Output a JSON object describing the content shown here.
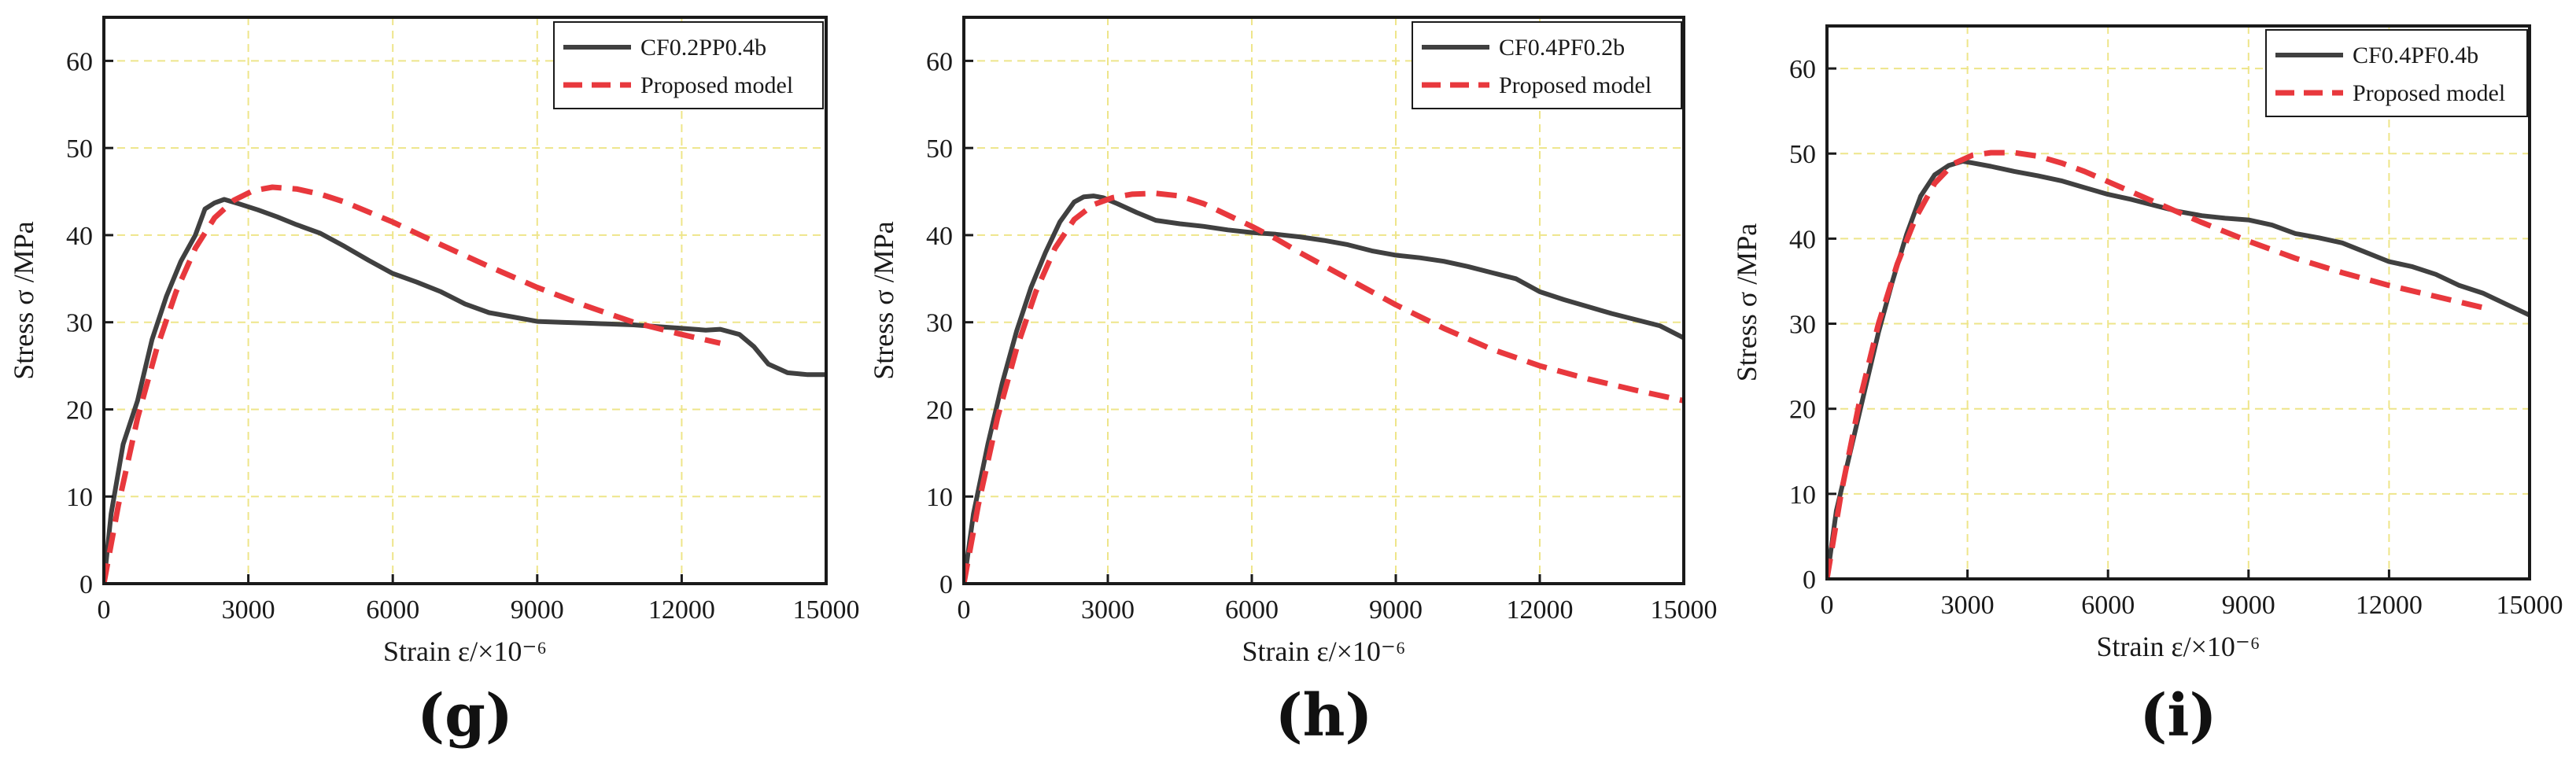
{
  "chart_data": [
    {
      "id": "g",
      "type": "line",
      "panel_label": "(g)",
      "xlabel": "Strain  ε/×10⁻⁶",
      "ylabel": "Stress σ /MPa",
      "xlim": [
        0,
        15000
      ],
      "ylim": [
        0,
        65
      ],
      "xticks": [
        0,
        3000,
        6000,
        9000,
        12000,
        15000
      ],
      "yticks": [
        0,
        10,
        20,
        30,
        40,
        50,
        60
      ],
      "grid": true,
      "legend_position": "top-right",
      "series": [
        {
          "name": "CF0.2PP0.4b",
          "style": "solid",
          "color": "#404040",
          "x": [
            0,
            150,
            400,
            700,
            1000,
            1300,
            1600,
            1900,
            2100,
            2300,
            2500,
            2800,
            3200,
            3600,
            4000,
            4500,
            5000,
            5500,
            6000,
            6500,
            7000,
            7500,
            8000,
            8500,
            9000,
            9500,
            10000,
            10500,
            11000,
            11500,
            12000,
            12500,
            12800,
            13200,
            13500,
            13800,
            14200,
            14600,
            15000
          ],
          "y": [
            0,
            8,
            16,
            21,
            28,
            33,
            37,
            40,
            43,
            43.7,
            44.1,
            43.6,
            42.9,
            42.1,
            41.2,
            40.2,
            38.7,
            37.1,
            35.6,
            34.6,
            33.5,
            32.1,
            31.1,
            30.6,
            30.1,
            30.0,
            29.9,
            29.8,
            29.7,
            29.5,
            29.3,
            29.1,
            29.2,
            28.6,
            27.2,
            25.2,
            24.2,
            24.0,
            24.0
          ]
        },
        {
          "name": "Proposed model",
          "style": "dashed",
          "color": "#e8383d",
          "x": [
            0,
            300,
            700,
            1100,
            1500,
            1900,
            2300,
            2700,
            3100,
            3500,
            4000,
            4500,
            5000,
            6000,
            7000,
            8000,
            9000,
            10000,
            11000,
            12000,
            12800
          ],
          "y": [
            0,
            9,
            19,
            27,
            33.5,
            38.5,
            42,
            44,
            45.1,
            45.5,
            45.3,
            44.7,
            43.8,
            41.5,
            38.9,
            36.4,
            34.0,
            31.9,
            30.0,
            28.6,
            27.6
          ]
        }
      ]
    },
    {
      "id": "h",
      "type": "line",
      "panel_label": "(h)",
      "xlabel": "Strain  ε/×10⁻⁶",
      "ylabel": "Stress σ /MPa",
      "xlim": [
        0,
        15000
      ],
      "ylim": [
        0,
        65
      ],
      "xticks": [
        0,
        3000,
        6000,
        9000,
        12000,
        15000
      ],
      "yticks": [
        0,
        10,
        20,
        30,
        40,
        50,
        60
      ],
      "grid": true,
      "legend_position": "top-right",
      "series": [
        {
          "name": "CF0.4PF0.2b",
          "style": "solid",
          "color": "#404040",
          "x": [
            0,
            200,
            500,
            800,
            1100,
            1400,
            1700,
            2000,
            2300,
            2500,
            2700,
            2900,
            3200,
            3600,
            4000,
            4500,
            5000,
            5500,
            6000,
            6500,
            7000,
            7500,
            8000,
            8500,
            9000,
            9500,
            10000,
            10500,
            11000,
            11500,
            12000,
            12500,
            13000,
            13500,
            14000,
            14500,
            15000
          ],
          "y": [
            0,
            8,
            16,
            23,
            29,
            34,
            38,
            41.5,
            43.8,
            44.4,
            44.5,
            44.3,
            43.6,
            42.6,
            41.7,
            41.3,
            41.0,
            40.6,
            40.3,
            40.1,
            39.8,
            39.4,
            38.9,
            38.2,
            37.7,
            37.4,
            37.0,
            36.4,
            35.7,
            35.0,
            33.5,
            32.6,
            31.8,
            31.0,
            30.3,
            29.6,
            28.2
          ]
        },
        {
          "name": "Proposed model",
          "style": "dashed",
          "color": "#e8383d",
          "x": [
            0,
            300,
            700,
            1100,
            1500,
            1900,
            2300,
            2700,
            3100,
            3500,
            4000,
            4500,
            5000,
            5500,
            6000,
            6500,
            7000,
            8000,
            9000,
            10000,
            11000,
            12000,
            13000,
            14000,
            15000
          ],
          "y": [
            0,
            9,
            19,
            27,
            33.5,
            38.5,
            41.8,
            43.5,
            44.3,
            44.7,
            44.8,
            44.5,
            43.6,
            42.3,
            41.0,
            39.6,
            38.0,
            35.0,
            32.0,
            29.3,
            26.9,
            25.0,
            23.5,
            22.2,
            21.0
          ]
        }
      ]
    },
    {
      "id": "i",
      "type": "line",
      "panel_label": "(i)",
      "xlabel": "Strain  ε/×10⁻⁶",
      "ylabel": "Stress σ /MPa",
      "xlim": [
        0,
        15000
      ],
      "ylim": [
        0,
        65
      ],
      "xticks": [
        0,
        3000,
        6000,
        9000,
        12000,
        15000
      ],
      "yticks": [
        0,
        10,
        20,
        30,
        40,
        50,
        60
      ],
      "grid": true,
      "legend_position": "top-right",
      "series": [
        {
          "name": "CF0.4PF0.4b",
          "style": "solid",
          "color": "#404040",
          "x": [
            0,
            200,
            500,
            800,
            1100,
            1400,
            1700,
            2000,
            2300,
            2600,
            2900,
            3100,
            3500,
            4000,
            4500,
            5000,
            5500,
            6000,
            6500,
            7000,
            7500,
            8000,
            8500,
            9000,
            9500,
            10000,
            10500,
            11000,
            11500,
            12000,
            12500,
            13000,
            13500,
            14000,
            14500,
            15000
          ],
          "y": [
            0,
            8,
            15,
            22,
            29,
            35,
            40.5,
            45,
            47.5,
            48.6,
            49.1,
            48.9,
            48.5,
            47.9,
            47.4,
            46.8,
            46.0,
            45.2,
            44.6,
            43.9,
            43.2,
            42.7,
            42.4,
            42.2,
            41.6,
            40.6,
            40.1,
            39.5,
            38.4,
            37.3,
            36.7,
            35.8,
            34.5,
            33.6,
            32.3,
            31.0
          ]
        },
        {
          "name": "Proposed model",
          "style": "dashed",
          "color": "#e8383d",
          "x": [
            0,
            300,
            700,
            1100,
            1500,
            1900,
            2300,
            2700,
            3100,
            3500,
            4000,
            4500,
            5000,
            5500,
            6000,
            7000,
            8000,
            9000,
            10000,
            11000,
            12000,
            13000,
            14000
          ],
          "y": [
            0,
            10,
            21,
            30,
            37,
            42.5,
            46.5,
            48.8,
            49.8,
            50.1,
            50.1,
            49.7,
            48.9,
            47.9,
            46.7,
            44.3,
            41.9,
            39.7,
            37.7,
            36.0,
            34.5,
            33.2,
            31.9
          ]
        }
      ]
    }
  ]
}
